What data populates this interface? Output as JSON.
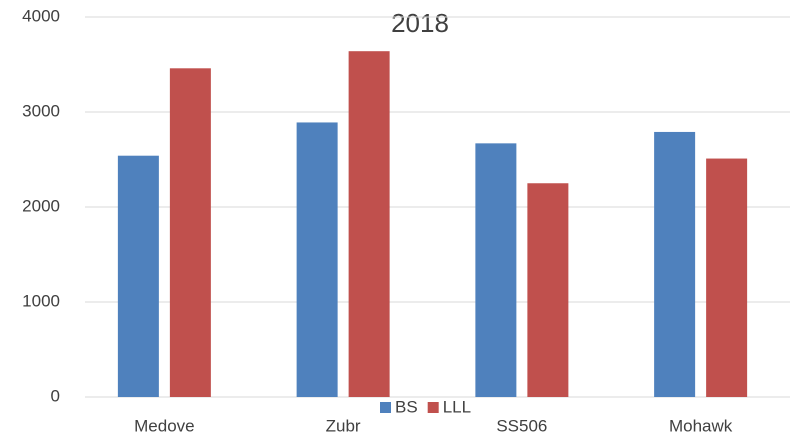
{
  "chart_data": {
    "type": "bar",
    "title": "2018",
    "categories": [
      "Medove",
      "Zubr",
      "SS506",
      "Mohawk"
    ],
    "series": [
      {
        "name": "BS",
        "color": "#4f81bd",
        "values": [
          2540,
          2890,
          2670,
          2790
        ]
      },
      {
        "name": "LLL",
        "color": "#c0504d",
        "values": [
          3460,
          3640,
          2250,
          2510
        ]
      }
    ],
    "ylim": [
      0,
      4000
    ],
    "yticks": [
      0,
      1000,
      2000,
      3000,
      4000
    ],
    "grid": true,
    "legend": "bottom"
  }
}
